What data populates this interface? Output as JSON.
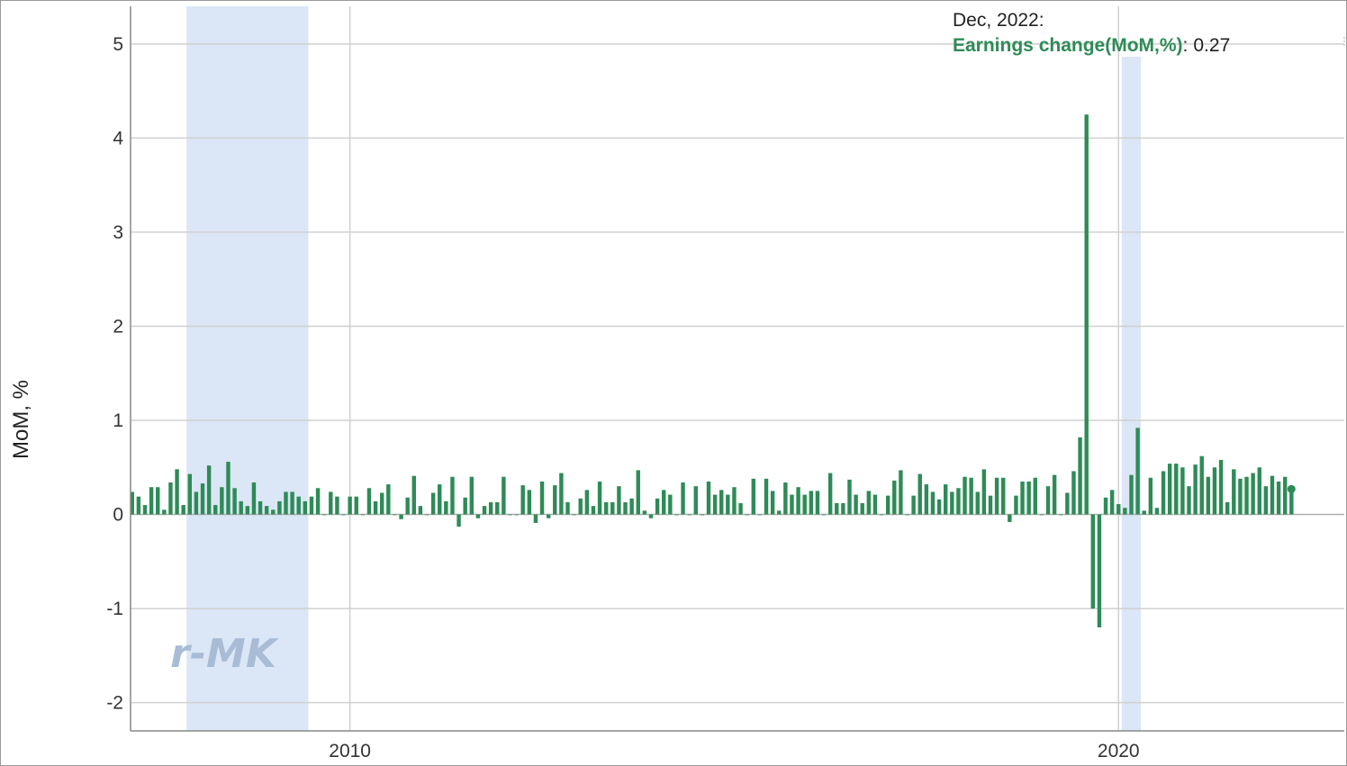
{
  "chart_data": {
    "type": "bar",
    "title": "",
    "xlabel": "",
    "ylabel": "MoM, %",
    "ylim": [
      -2.3,
      5.4
    ],
    "yticks": [
      -2,
      -1,
      0,
      1,
      2,
      3,
      4,
      5
    ],
    "xticks": [
      {
        "label": "2010",
        "year": 2010
      },
      {
        "label": "2020",
        "year": 2020
      }
    ],
    "x_start": "2007-03",
    "x_end": "2022-12",
    "grid": true,
    "legend": "none",
    "recessions": [
      {
        "start": "2007-12",
        "end": "2009-06"
      },
      {
        "start": "2020-02",
        "end": "2020-04"
      }
    ],
    "series": [
      {
        "name": "Earnings change(MoM,%)",
        "color": "#2e8b57",
        "start": "2007-03",
        "values": [
          0.24,
          0.19,
          0.1,
          0.29,
          0.29,
          0.05,
          0.34,
          0.48,
          0.1,
          0.43,
          0.24,
          0.33,
          0.52,
          0.1,
          0.29,
          0.56,
          0.28,
          0.14,
          0.09,
          0.34,
          0.14,
          0.09,
          0.05,
          0.14,
          0.24,
          0.24,
          0.19,
          0.14,
          0.19,
          0.28,
          0.0,
          0.24,
          0.19,
          0.0,
          0.19,
          0.19,
          0.0,
          0.28,
          0.14,
          0.23,
          0.32,
          0.0,
          -0.05,
          0.18,
          0.41,
          0.09,
          0.0,
          0.23,
          0.32,
          0.14,
          0.4,
          -0.13,
          0.18,
          0.4,
          -0.04,
          0.09,
          0.13,
          0.13,
          0.4,
          0.0,
          0.0,
          0.31,
          0.26,
          -0.09,
          0.35,
          -0.04,
          0.31,
          0.44,
          0.13,
          0.0,
          0.17,
          0.26,
          0.09,
          0.35,
          0.13,
          0.13,
          0.3,
          0.13,
          0.17,
          0.47,
          0.04,
          -0.04,
          0.17,
          0.26,
          0.21,
          0.0,
          0.34,
          0.0,
          0.3,
          0.0,
          0.35,
          0.21,
          0.26,
          0.21,
          0.29,
          0.12,
          0.0,
          0.38,
          0.0,
          0.38,
          0.25,
          0.04,
          0.34,
          0.21,
          0.29,
          0.21,
          0.25,
          0.25,
          0.0,
          0.44,
          0.12,
          0.12,
          0.37,
          0.21,
          0.12,
          0.25,
          0.21,
          0.0,
          0.2,
          0.36,
          0.47,
          0.0,
          0.2,
          0.43,
          0.32,
          0.24,
          0.16,
          0.32,
          0.24,
          0.28,
          0.4,
          0.39,
          0.24,
          0.48,
          0.2,
          0.39,
          0.39,
          -0.08,
          0.2,
          0.35,
          0.35,
          0.39,
          0.0,
          0.3,
          0.42,
          0.0,
          0.23,
          0.46,
          0.82,
          4.25,
          -1.0,
          -1.2,
          0.18,
          0.26,
          0.11,
          0.07,
          0.42,
          0.92,
          0.04,
          0.39,
          0.07,
          0.46,
          0.54,
          0.54,
          0.5,
          0.3,
          0.53,
          0.62,
          0.4,
          0.5,
          0.58,
          0.13,
          0.48,
          0.38,
          0.4,
          0.44,
          0.5,
          0.3,
          0.41,
          0.35,
          0.4,
          0.27
        ]
      }
    ],
    "annotations": [
      {
        "text": "r-MK",
        "kind": "watermark"
      }
    ]
  },
  "tooltip": {
    "date": "Dec, 2022:",
    "series_label": "Earnings change(MoM,%)",
    "separator": ":",
    "value": "0.27"
  },
  "watermark": {
    "text": "r-MK"
  }
}
